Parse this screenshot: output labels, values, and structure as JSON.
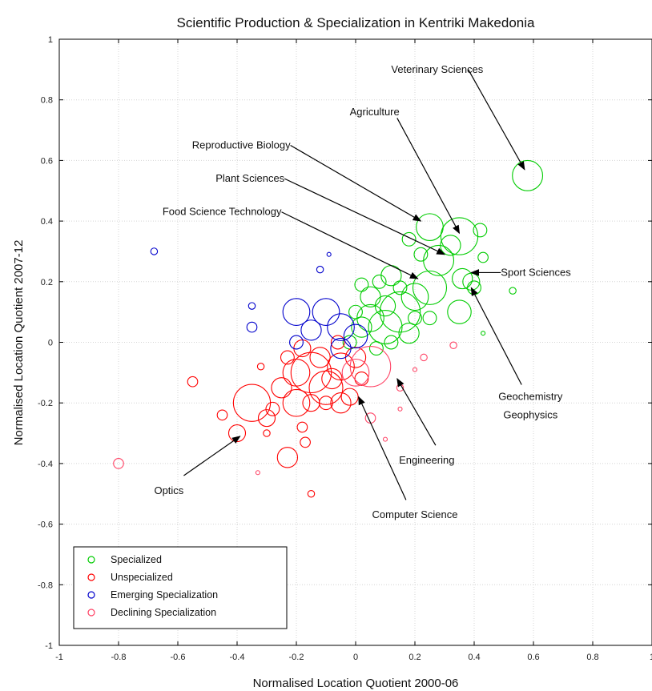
{
  "chart_data": {
    "type": "scatter",
    "title": "Scientific Production & Specialization in Kentriki Makedonia",
    "xlabel": "Normalised Location Quotient 2000-06",
    "ylabel": "Normalised Location Quotient 2007-12",
    "xlim": [
      -1,
      1
    ],
    "ylim": [
      -1,
      1
    ],
    "grid": true,
    "legend_position": "bottom-left",
    "x_ticks": [
      "-1",
      "-0.8",
      "-0.6",
      "-0.4",
      "-0.2",
      "0",
      "0.2",
      "0.4",
      "0.6",
      "0.8",
      "1"
    ],
    "y_ticks": [
      "-1",
      "-0.8",
      "-0.6",
      "-0.4",
      "-0.2",
      "0",
      "0.2",
      "0.4",
      "0.6",
      "0.8",
      "1"
    ],
    "series": [
      {
        "name": "Specialized",
        "color": "#00cc00",
        "points": [
          {
            "x": 0.58,
            "y": 0.55,
            "r": 4.5
          },
          {
            "x": 0.35,
            "y": 0.35,
            "r": 5.5
          },
          {
            "x": 0.25,
            "y": 0.38,
            "r": 4
          },
          {
            "x": 0.28,
            "y": 0.27,
            "r": 4.5
          },
          {
            "x": 0.32,
            "y": 0.32,
            "r": 3
          },
          {
            "x": 0.18,
            "y": 0.34,
            "r": 2
          },
          {
            "x": 0.22,
            "y": 0.29,
            "r": 2
          },
          {
            "x": 0.42,
            "y": 0.37,
            "r": 2
          },
          {
            "x": 0.43,
            "y": 0.28,
            "r": 1.5
          },
          {
            "x": 0.36,
            "y": 0.21,
            "r": 3
          },
          {
            "x": 0.39,
            "y": 0.2,
            "r": 2.5
          },
          {
            "x": 0.4,
            "y": 0.18,
            "r": 2
          },
          {
            "x": 0.35,
            "y": 0.1,
            "r": 3.5
          },
          {
            "x": 0.25,
            "y": 0.18,
            "r": 5
          },
          {
            "x": 0.2,
            "y": 0.15,
            "r": 4
          },
          {
            "x": 0.15,
            "y": 0.1,
            "r": 6
          },
          {
            "x": 0.1,
            "y": 0.05,
            "r": 5
          },
          {
            "x": 0.1,
            "y": 0.12,
            "r": 3
          },
          {
            "x": 0.05,
            "y": 0.15,
            "r": 3
          },
          {
            "x": 0.05,
            "y": 0.08,
            "r": 4
          },
          {
            "x": 0.02,
            "y": 0.05,
            "r": 3
          },
          {
            "x": 0.12,
            "y": 0.22,
            "r": 3
          },
          {
            "x": 0.02,
            "y": 0.19,
            "r": 2
          },
          {
            "x": 0.18,
            "y": 0.03,
            "r": 3
          },
          {
            "x": 0.12,
            "y": 0.0,
            "r": 2
          },
          {
            "x": 0.15,
            "y": 0.18,
            "r": 2
          },
          {
            "x": 0.08,
            "y": 0.2,
            "r": 2
          },
          {
            "x": 0.0,
            "y": 0.1,
            "r": 2
          },
          {
            "x": 0.53,
            "y": 0.17,
            "r": 1
          },
          {
            "x": 0.43,
            "y": 0.03,
            "r": 0.5
          },
          {
            "x": 0.25,
            "y": 0.08,
            "r": 2
          },
          {
            "x": 0.2,
            "y": 0.08,
            "r": 2
          },
          {
            "x": -0.02,
            "y": 0.0,
            "r": 2
          },
          {
            "x": 0.07,
            "y": -0.02,
            "r": 2
          }
        ]
      },
      {
        "name": "Unspecialized",
        "color": "#ff0000",
        "points": [
          {
            "x": -0.35,
            "y": -0.2,
            "r": 5.5
          },
          {
            "x": -0.15,
            "y": -0.1,
            "r": 6
          },
          {
            "x": -0.2,
            "y": -0.1,
            "r": 4
          },
          {
            "x": -0.1,
            "y": -0.15,
            "r": 5
          },
          {
            "x": -0.05,
            "y": -0.08,
            "r": 4
          },
          {
            "x": -0.2,
            "y": -0.2,
            "r": 4
          },
          {
            "x": -0.25,
            "y": -0.15,
            "r": 3
          },
          {
            "x": -0.12,
            "y": -0.05,
            "r": 3
          },
          {
            "x": 0.0,
            "y": -0.05,
            "r": 3
          },
          {
            "x": -0.05,
            "y": -0.2,
            "r": 3
          },
          {
            "x": -0.15,
            "y": -0.2,
            "r": 2.5
          },
          {
            "x": -0.02,
            "y": -0.18,
            "r": 2.5
          },
          {
            "x": -0.08,
            "y": -0.12,
            "r": 3
          },
          {
            "x": -0.3,
            "y": -0.25,
            "r": 2.5
          },
          {
            "x": -0.4,
            "y": -0.3,
            "r": 2.5
          },
          {
            "x": -0.23,
            "y": -0.38,
            "r": 3
          },
          {
            "x": -0.55,
            "y": -0.13,
            "r": 1.5
          },
          {
            "x": -0.45,
            "y": -0.24,
            "r": 1.5
          },
          {
            "x": -0.3,
            "y": -0.3,
            "r": 1
          },
          {
            "x": -0.18,
            "y": -0.28,
            "r": 1.5
          },
          {
            "x": -0.17,
            "y": -0.33,
            "r": 1.5
          },
          {
            "x": -0.15,
            "y": -0.5,
            "r": 1
          },
          {
            "x": -0.23,
            "y": -0.05,
            "r": 2
          },
          {
            "x": -0.18,
            "y": -0.02,
            "r": 2.5
          },
          {
            "x": -0.28,
            "y": -0.22,
            "r": 2
          },
          {
            "x": -0.32,
            "y": -0.08,
            "r": 1
          },
          {
            "x": -0.1,
            "y": -0.2,
            "r": 2
          },
          {
            "x": -0.06,
            "y": 0.0,
            "r": 2
          },
          {
            "x": 0.02,
            "y": -0.12,
            "r": 2
          }
        ]
      },
      {
        "name": "Emerging Specialization",
        "color": "#0000cc",
        "points": [
          {
            "x": -0.68,
            "y": 0.3,
            "r": 1
          },
          {
            "x": -0.09,
            "y": 0.29,
            "r": 0.5
          },
          {
            "x": -0.12,
            "y": 0.24,
            "r": 1
          },
          {
            "x": -0.35,
            "y": 0.12,
            "r": 1
          },
          {
            "x": -0.35,
            "y": 0.05,
            "r": 1.5
          },
          {
            "x": -0.2,
            "y": 0.1,
            "r": 4
          },
          {
            "x": -0.1,
            "y": 0.1,
            "r": 4
          },
          {
            "x": -0.05,
            "y": 0.05,
            "r": 4
          },
          {
            "x": -0.15,
            "y": 0.04,
            "r": 3
          },
          {
            "x": 0.0,
            "y": 0.02,
            "r": 3.5
          },
          {
            "x": -0.05,
            "y": -0.02,
            "r": 3
          },
          {
            "x": -0.2,
            "y": 0.0,
            "r": 2
          }
        ]
      },
      {
        "name": "Declining Specialization",
        "color": "#ff4466",
        "points": [
          {
            "x": 0.05,
            "y": -0.08,
            "r": 6
          },
          {
            "x": 0.0,
            "y": -0.1,
            "r": 4
          },
          {
            "x": -0.8,
            "y": -0.4,
            "r": 1.5
          },
          {
            "x": 0.33,
            "y": -0.01,
            "r": 1
          },
          {
            "x": 0.23,
            "y": -0.05,
            "r": 1
          },
          {
            "x": 0.2,
            "y": -0.09,
            "r": 0.5
          },
          {
            "x": 0.15,
            "y": -0.15,
            "r": 1
          },
          {
            "x": 0.05,
            "y": -0.25,
            "r": 1.5
          },
          {
            "x": 0.1,
            "y": -0.32,
            "r": 0.5
          },
          {
            "x": 0.15,
            "y": -0.22,
            "r": 0.5
          },
          {
            "x": -0.33,
            "y": -0.43,
            "r": 0.5
          }
        ]
      }
    ],
    "annotations": [
      {
        "id": "veterinary",
        "text": "Veterinary Sciences",
        "tx": 0.12,
        "ty": 0.9,
        "anchor": "start",
        "ax": 0.38,
        "ay": 0.9,
        "px": 0.57,
        "py": 0.57
      },
      {
        "id": "agriculture",
        "text": "Agriculture",
        "tx": -0.02,
        "ty": 0.76,
        "anchor": "start",
        "ax": 0.14,
        "ay": 0.74,
        "px": 0.35,
        "py": 0.36
      },
      {
        "id": "reproductive",
        "text": "Reproductive Biology",
        "tx": -0.22,
        "ty": 0.65,
        "anchor": "end",
        "ax": -0.22,
        "ay": 0.65,
        "px": 0.22,
        "py": 0.4
      },
      {
        "id": "plant",
        "text": "Plant Sciences",
        "tx": -0.24,
        "ty": 0.54,
        "anchor": "end",
        "ax": -0.24,
        "ay": 0.54,
        "px": 0.3,
        "py": 0.29
      },
      {
        "id": "food",
        "text": "Food Science Technology",
        "tx": -0.25,
        "ty": 0.43,
        "anchor": "end",
        "ax": -0.25,
        "ay": 0.43,
        "px": 0.21,
        "py": 0.21
      },
      {
        "id": "sport",
        "text": "Sport Sciences",
        "tx": 0.49,
        "ty": 0.23,
        "anchor": "start",
        "ax": 0.49,
        "ay": 0.23,
        "px": 0.39,
        "py": 0.23
      },
      {
        "id": "geochem",
        "text": "Geochemistry",
        "tx": 0.59,
        "ty": -0.18,
        "anchor": "middle",
        "ax": 0.56,
        "ay": -0.14,
        "px": 0.39,
        "py": 0.18
      },
      {
        "id": "geophys",
        "text": "Geophysics",
        "tx": 0.59,
        "ty": -0.24,
        "anchor": "middle",
        "ax": null,
        "ay": null,
        "px": null,
        "py": null
      },
      {
        "id": "engineering",
        "text": "Engineering",
        "tx": 0.24,
        "ty": -0.39,
        "anchor": "middle",
        "ax": 0.27,
        "ay": -0.34,
        "px": 0.14,
        "py": -0.12
      },
      {
        "id": "computer",
        "text": "Computer Science",
        "tx": 0.2,
        "ty": -0.57,
        "anchor": "middle",
        "ax": 0.17,
        "ay": -0.52,
        "px": 0.01,
        "py": -0.18
      },
      {
        "id": "optics",
        "text": "Optics",
        "tx": -0.63,
        "ty": -0.49,
        "anchor": "middle",
        "ax": -0.58,
        "ay": -0.44,
        "px": -0.39,
        "py": -0.31
      }
    ]
  }
}
